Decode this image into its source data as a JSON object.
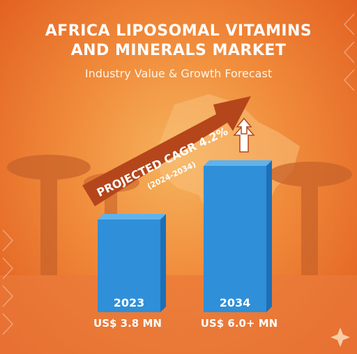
{
  "header": {
    "title_line1": "AFRICA LIPOSOMAL VITAMINS",
    "title_line2": "AND MINERALS MARKET",
    "subtitle": "Industry Value & Growth Forecast"
  },
  "cagr": {
    "label": "PROJECTED CAGR 4.2%",
    "period": "(2024-2034)"
  },
  "colors": {
    "bar": "#2f8fd8",
    "bar_dark": "#1d6fb5",
    "arrow": "#b5461b",
    "background": "#f08a3a"
  },
  "chart_data": {
    "type": "bar",
    "categories": [
      "2023",
      "2034"
    ],
    "values": [
      3.8,
      6.0
    ],
    "value_labels": [
      "US$ 3.8 MN",
      "US$ 6.0+ MN"
    ],
    "title": "AFRICA LIPOSOMAL VITAMINS AND MINERALS MARKET",
    "subtitle": "Industry Value & Growth Forecast",
    "ylim": [
      0,
      6.0
    ],
    "grid": false
  }
}
